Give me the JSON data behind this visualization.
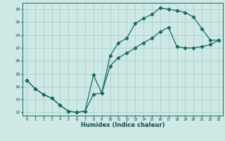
{
  "xlabel": "Humidex (Indice chaleur)",
  "bg_color": "#cde8e5",
  "grid_color": "#a8ccc8",
  "line_color": "#1a6b60",
  "xlim": [
    -0.5,
    23.5
  ],
  "ylim": [
    11.5,
    29.0
  ],
  "xticks": [
    0,
    1,
    2,
    3,
    4,
    5,
    6,
    7,
    8,
    9,
    10,
    11,
    12,
    13,
    14,
    15,
    16,
    17,
    18,
    19,
    20,
    21,
    22,
    23
  ],
  "yticks": [
    12,
    14,
    16,
    18,
    20,
    22,
    24,
    26,
    28
  ],
  "curve1_x": [
    0,
    1,
    2,
    3,
    4,
    5,
    6,
    7,
    8,
    9,
    10,
    11,
    12,
    13,
    14,
    15,
    16,
    17,
    18,
    19,
    20,
    21,
    22,
    23
  ],
  "curve1_y": [
    17.0,
    15.7,
    14.8,
    14.2,
    13.1,
    12.2,
    12.0,
    12.2,
    17.8,
    15.0,
    20.8,
    22.8,
    23.5,
    25.8,
    26.6,
    27.2,
    28.2,
    28.0,
    27.8,
    27.5,
    26.8,
    25.0,
    23.2,
    23.2
  ],
  "curve2_x": [
    0,
    1,
    2,
    3,
    4,
    5,
    6,
    7,
    8,
    9,
    10,
    11,
    12,
    13,
    14,
    15,
    16,
    17,
    18,
    19,
    20,
    21,
    22,
    23
  ],
  "curve2_y": [
    17.0,
    15.7,
    14.8,
    14.2,
    13.1,
    12.2,
    12.0,
    12.2,
    14.8,
    15.0,
    19.2,
    20.5,
    21.2,
    22.0,
    22.8,
    23.5,
    24.5,
    25.2,
    22.2,
    22.0,
    22.0,
    22.2,
    22.5,
    23.2
  ],
  "marker": "D",
  "markersize": 2.2,
  "linewidth": 0.9
}
